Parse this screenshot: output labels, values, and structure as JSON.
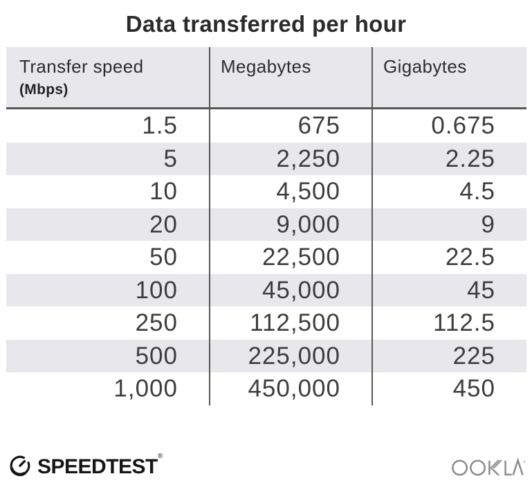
{
  "title": "Data transferred per hour",
  "table": {
    "header": {
      "col1_line1": "Transfer speed",
      "col1_line2": "(Mbps)",
      "col2": "Megabytes",
      "col3": "Gigabytes"
    },
    "rows": [
      [
        "1.5",
        "675",
        "0.675"
      ],
      [
        "5",
        "2,250",
        "2.25"
      ],
      [
        "10",
        "4,500",
        "4.5"
      ],
      [
        "20",
        "9,000",
        "9"
      ],
      [
        "50",
        "22,500",
        "22.5"
      ],
      [
        "100",
        "45,000",
        "45"
      ],
      [
        "250",
        "112,500",
        "112.5"
      ],
      [
        "500",
        "225,000",
        "225"
      ],
      [
        "1,000",
        "450,000",
        "450"
      ]
    ]
  },
  "footer": {
    "speedtest_label": "SPEEDTEST",
    "speedtest_trademark": "®",
    "ookla_label": "OOKLA"
  },
  "colors": {
    "stripe": "#e8e7eb",
    "divider": "#565656",
    "title_text": "#2b2b2b",
    "cell_text": "#3d3d3d",
    "ookla_gray": "#8c8b8d",
    "logo_ink": "#161616"
  },
  "chart_data": {
    "type": "table",
    "title": "Data transferred per hour",
    "columns": [
      "Transfer speed (Mbps)",
      "Megabytes",
      "Gigabytes"
    ],
    "rows": [
      [
        1.5,
        675,
        0.675
      ],
      [
        5,
        2250,
        2.25
      ],
      [
        10,
        4500,
        4.5
      ],
      [
        20,
        9000,
        9
      ],
      [
        50,
        22500,
        22.5
      ],
      [
        100,
        45000,
        45
      ],
      [
        250,
        112500,
        112.5
      ],
      [
        500,
        225000,
        225
      ],
      [
        1000,
        450000,
        450
      ]
    ],
    "notes": "rows striped light gray on alternating lines; values right-aligned; attribution Speedtest by Ookla"
  }
}
